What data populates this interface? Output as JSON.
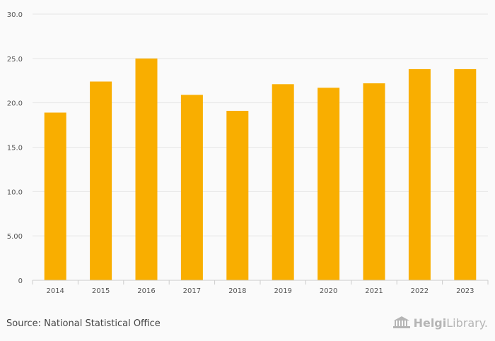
{
  "chart_data": {
    "type": "bar",
    "categories": [
      "2014",
      "2015",
      "2016",
      "2017",
      "2018",
      "2019",
      "2020",
      "2021",
      "2022",
      "2023"
    ],
    "values": [
      18.9,
      22.4,
      25.0,
      20.9,
      19.1,
      22.1,
      21.7,
      22.2,
      23.8,
      23.8
    ],
    "ylim": [
      0,
      30
    ],
    "yticks": [
      0,
      5,
      10,
      15,
      20,
      25,
      30
    ],
    "ytick_labels": [
      "0",
      "5.00",
      "10.0",
      "15.0",
      "20.0",
      "25.0",
      "30.0"
    ],
    "grid": true,
    "bar_color": "#f9ae00"
  },
  "footer": {
    "source": "Source: National Statistical Office",
    "brand_part1": "Helgi",
    "brand_part2": "Library."
  },
  "colors": {
    "grid": "#e6e6e6",
    "axis": "#cccccc",
    "brand": "#b5b5b5"
  }
}
